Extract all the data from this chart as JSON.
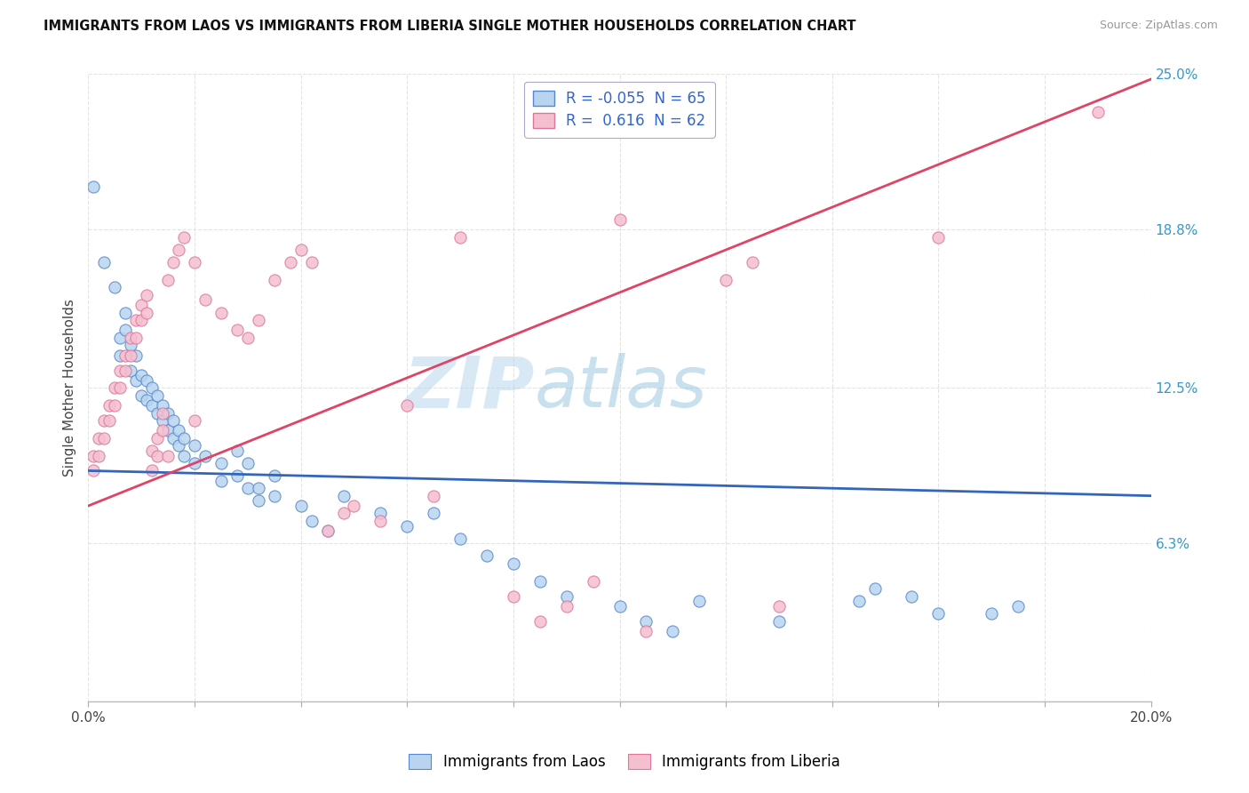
{
  "title": "IMMIGRANTS FROM LAOS VS IMMIGRANTS FROM LIBERIA SINGLE MOTHER HOUSEHOLDS CORRELATION CHART",
  "source": "Source: ZipAtlas.com",
  "ylabel": "Single Mother Households",
  "xlim": [
    0.0,
    0.2
  ],
  "ylim": [
    0.0,
    0.25
  ],
  "watermark_zip": "ZIP",
  "watermark_atlas": "atlas",
  "laos_color": "#b8d4f0",
  "laos_edge": "#5588cc",
  "liberia_color": "#f5bfd0",
  "liberia_edge": "#dd7799",
  "laos_line_color": "#3366bb",
  "liberia_line_color": "#dd4466",
  "background_color": "#ffffff",
  "grid_color": "#dddddd",
  "legend_label_laos": "R = -0.055  N = 65",
  "legend_label_liberia": "R =  0.616  N = 62",
  "laos_line": [
    0.0,
    0.092,
    0.2,
    0.082
  ],
  "liberia_line": [
    0.0,
    0.078,
    0.2,
    0.248
  ],
  "laos_points": [
    [
      0.001,
      0.205
    ],
    [
      0.003,
      0.175
    ],
    [
      0.005,
      0.165
    ],
    [
      0.006,
      0.145
    ],
    [
      0.006,
      0.138
    ],
    [
      0.007,
      0.155
    ],
    [
      0.007,
      0.148
    ],
    [
      0.008,
      0.142
    ],
    [
      0.008,
      0.132
    ],
    [
      0.009,
      0.138
    ],
    [
      0.009,
      0.128
    ],
    [
      0.01,
      0.13
    ],
    [
      0.01,
      0.122
    ],
    [
      0.011,
      0.128
    ],
    [
      0.011,
      0.12
    ],
    [
      0.012,
      0.125
    ],
    [
      0.012,
      0.118
    ],
    [
      0.013,
      0.122
    ],
    [
      0.013,
      0.115
    ],
    [
      0.014,
      0.118
    ],
    [
      0.014,
      0.112
    ],
    [
      0.015,
      0.115
    ],
    [
      0.015,
      0.108
    ],
    [
      0.016,
      0.112
    ],
    [
      0.016,
      0.105
    ],
    [
      0.017,
      0.108
    ],
    [
      0.017,
      0.102
    ],
    [
      0.018,
      0.105
    ],
    [
      0.018,
      0.098
    ],
    [
      0.02,
      0.102
    ],
    [
      0.02,
      0.095
    ],
    [
      0.022,
      0.098
    ],
    [
      0.025,
      0.095
    ],
    [
      0.025,
      0.088
    ],
    [
      0.028,
      0.1
    ],
    [
      0.028,
      0.09
    ],
    [
      0.03,
      0.095
    ],
    [
      0.03,
      0.085
    ],
    [
      0.032,
      0.085
    ],
    [
      0.032,
      0.08
    ],
    [
      0.035,
      0.09
    ],
    [
      0.035,
      0.082
    ],
    [
      0.04,
      0.078
    ],
    [
      0.042,
      0.072
    ],
    [
      0.045,
      0.068
    ],
    [
      0.048,
      0.082
    ],
    [
      0.055,
      0.075
    ],
    [
      0.06,
      0.07
    ],
    [
      0.065,
      0.075
    ],
    [
      0.07,
      0.065
    ],
    [
      0.075,
      0.058
    ],
    [
      0.08,
      0.055
    ],
    [
      0.085,
      0.048
    ],
    [
      0.09,
      0.042
    ],
    [
      0.1,
      0.038
    ],
    [
      0.105,
      0.032
    ],
    [
      0.11,
      0.028
    ],
    [
      0.115,
      0.04
    ],
    [
      0.13,
      0.032
    ],
    [
      0.145,
      0.04
    ],
    [
      0.148,
      0.045
    ],
    [
      0.155,
      0.042
    ],
    [
      0.16,
      0.035
    ],
    [
      0.17,
      0.035
    ],
    [
      0.175,
      0.038
    ]
  ],
  "liberia_points": [
    [
      0.001,
      0.098
    ],
    [
      0.001,
      0.092
    ],
    [
      0.002,
      0.105
    ],
    [
      0.002,
      0.098
    ],
    [
      0.003,
      0.112
    ],
    [
      0.003,
      0.105
    ],
    [
      0.004,
      0.118
    ],
    [
      0.004,
      0.112
    ],
    [
      0.005,
      0.125
    ],
    [
      0.005,
      0.118
    ],
    [
      0.006,
      0.132
    ],
    [
      0.006,
      0.125
    ],
    [
      0.007,
      0.138
    ],
    [
      0.007,
      0.132
    ],
    [
      0.008,
      0.145
    ],
    [
      0.008,
      0.138
    ],
    [
      0.009,
      0.152
    ],
    [
      0.009,
      0.145
    ],
    [
      0.01,
      0.158
    ],
    [
      0.01,
      0.152
    ],
    [
      0.011,
      0.162
    ],
    [
      0.011,
      0.155
    ],
    [
      0.012,
      0.1
    ],
    [
      0.012,
      0.092
    ],
    [
      0.013,
      0.105
    ],
    [
      0.013,
      0.098
    ],
    [
      0.014,
      0.115
    ],
    [
      0.014,
      0.108
    ],
    [
      0.015,
      0.168
    ],
    [
      0.015,
      0.098
    ],
    [
      0.016,
      0.175
    ],
    [
      0.017,
      0.18
    ],
    [
      0.018,
      0.185
    ],
    [
      0.02,
      0.175
    ],
    [
      0.02,
      0.112
    ],
    [
      0.022,
      0.16
    ],
    [
      0.025,
      0.155
    ],
    [
      0.028,
      0.148
    ],
    [
      0.03,
      0.145
    ],
    [
      0.032,
      0.152
    ],
    [
      0.035,
      0.168
    ],
    [
      0.038,
      0.175
    ],
    [
      0.04,
      0.18
    ],
    [
      0.042,
      0.175
    ],
    [
      0.045,
      0.068
    ],
    [
      0.048,
      0.075
    ],
    [
      0.05,
      0.078
    ],
    [
      0.055,
      0.072
    ],
    [
      0.06,
      0.118
    ],
    [
      0.065,
      0.082
    ],
    [
      0.07,
      0.185
    ],
    [
      0.08,
      0.042
    ],
    [
      0.085,
      0.032
    ],
    [
      0.09,
      0.038
    ],
    [
      0.095,
      0.048
    ],
    [
      0.1,
      0.192
    ],
    [
      0.105,
      0.028
    ],
    [
      0.12,
      0.168
    ],
    [
      0.125,
      0.175
    ],
    [
      0.13,
      0.038
    ],
    [
      0.16,
      0.185
    ],
    [
      0.19,
      0.235
    ]
  ]
}
